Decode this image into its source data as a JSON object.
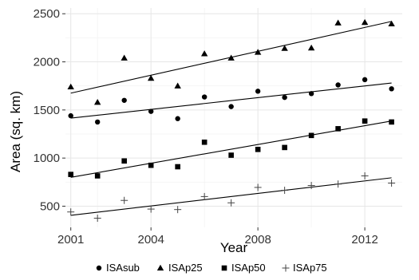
{
  "chart_data": {
    "type": "scatter",
    "title": "",
    "xlabel": "Year",
    "ylabel": "Area (sq. km)",
    "xlim": [
      2000.8,
      2013.4
    ],
    "ylim": [
      280,
      2560
    ],
    "x_ticks": [
      2001,
      2004,
      2008,
      2012
    ],
    "y_ticks": [
      500,
      1000,
      1500,
      2000,
      2500
    ],
    "x_minor_ticks": [
      2002,
      2006,
      2010
    ],
    "y_minor_ticks": [
      750,
      1250,
      1750,
      2250
    ],
    "grid": true,
    "legend_position": "bottom",
    "x": [
      2001,
      2002,
      2003,
      2004,
      2005,
      2006,
      2007,
      2008,
      2009,
      2010,
      2011,
      2012,
      2013
    ],
    "series": [
      {
        "name": "ISAsub",
        "marker": "circle",
        "values": [
          1440,
          1375,
          1600,
          1485,
          1410,
          1635,
          1535,
          1695,
          1630,
          1670,
          1760,
          1815,
          1720
        ],
        "trend": [
          1415,
          1780
        ]
      },
      {
        "name": "ISAp25",
        "marker": "triangle",
        "values": [
          1740,
          1580,
          2040,
          1830,
          1750,
          2085,
          2040,
          2100,
          2140,
          2145,
          2405,
          2410,
          2395
        ],
        "trend": [
          1675,
          2420
        ]
      },
      {
        "name": "ISAp50",
        "marker": "square",
        "values": [
          830,
          815,
          970,
          925,
          910,
          1165,
          1030,
          1090,
          1110,
          1235,
          1305,
          1385,
          1375
        ],
        "trend": [
          800,
          1385
        ]
      },
      {
        "name": "ISAp75",
        "marker": "plus",
        "values": [
          440,
          375,
          560,
          470,
          465,
          600,
          535,
          695,
          665,
          715,
          730,
          815,
          740
        ],
        "trend": [
          405,
          795
        ]
      }
    ]
  }
}
